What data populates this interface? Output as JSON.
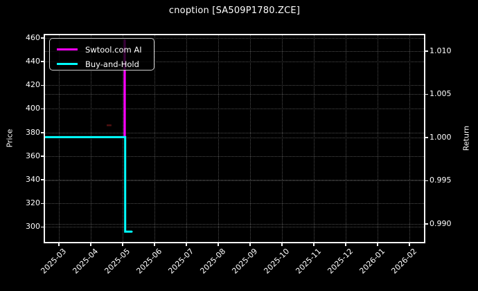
{
  "title": "cnoption [SA509P1780.ZCE]",
  "colors": {
    "background": "#000000",
    "text": "#ffffff",
    "grid": "#4e4e4e",
    "spine": "#f5f5f5",
    "ai_line": "#ff00ff",
    "bh_line": "#00ffff",
    "faint_marker": "#5e1414",
    "legend_border": "#cfcfcf"
  },
  "legend": {
    "position": "upper-left",
    "items": [
      {
        "label": "Swtool.com AI",
        "color": "#ff00ff"
      },
      {
        "label": "Buy-and-Hold",
        "color": "#00ffff"
      }
    ]
  },
  "chart_data": {
    "type": "line",
    "title": "cnoption [SA509P1780.ZCE]",
    "grid": "dotted",
    "legend_position": "upper-left",
    "x_axis": {
      "tick_labels": [
        "2025-03",
        "2025-04",
        "2025-05",
        "2025-06",
        "2025-07",
        "2025-08",
        "2025-09",
        "2025-10",
        "2025-11",
        "2025-12",
        "2026-01",
        "2026-02"
      ],
      "min_m": -0.435,
      "max_m": 11.457
    },
    "left_axis": {
      "label": "Price",
      "tick_labels": [
        "460",
        "440",
        "420",
        "400",
        "380",
        "360",
        "340",
        "320",
        "300"
      ],
      "ticks": [
        460,
        440,
        420,
        400,
        380,
        360,
        340,
        320,
        300
      ],
      "min": 287.3,
      "max": 462.2
    },
    "right_axis": {
      "label": "Return",
      "tick_labels": [
        "1.010",
        "1.005",
        "1.000",
        "0.995",
        "0.990"
      ],
      "ticks": [
        1.01,
        1.005,
        1.0,
        0.995,
        0.99
      ],
      "min": 0.9879,
      "max": 1.0118
    },
    "series": [
      {
        "name": "Swtool.com AI",
        "color": "#ff00ff",
        "axis": "right",
        "width": 3.2,
        "points": [
          {
            "date": "2025-05-01",
            "m": 2.065,
            "value": 1.0
          },
          {
            "date": "2025-05-01",
            "m": 2.065,
            "value": 1.0112
          }
        ]
      },
      {
        "name": "Buy-and-Hold",
        "color": "#00ffff",
        "axis": "left",
        "width": 3,
        "points": [
          {
            "date": "2025-02-17",
            "m": -0.413,
            "value": 376
          },
          {
            "date": "2025-05-01",
            "m": 2.08,
            "value": 376
          },
          {
            "date": "2025-05-02",
            "m": 2.08,
            "value": 296
          },
          {
            "date": "2025-05-08",
            "m": 2.283,
            "value": 296
          }
        ]
      }
    ],
    "annotations": [
      {
        "name": "faint-red-dash",
        "axis": "left",
        "m1": 1.5,
        "m2": 1.65,
        "value": 386,
        "color": "#5e1414",
        "opacity": 0.85
      }
    ]
  }
}
